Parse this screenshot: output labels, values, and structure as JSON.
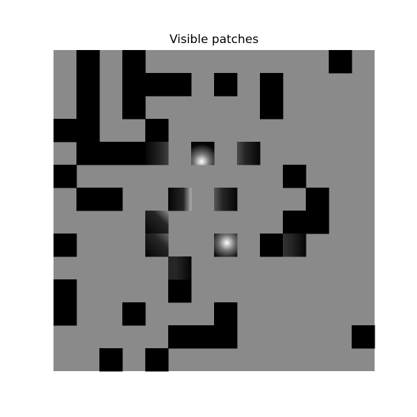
{
  "chart_data": {
    "type": "heatmap",
    "title": "Visible patches",
    "grid": false,
    "axes_visible": false,
    "rows": 14,
    "cols": 14,
    "colormap": "gray",
    "background_value": 0.54,
    "masked_value": 0,
    "masked_cells": [
      [
        0,
        1
      ],
      [
        0,
        3
      ],
      [
        0,
        12
      ],
      [
        1,
        1
      ],
      [
        1,
        3
      ],
      [
        1,
        4
      ],
      [
        1,
        5
      ],
      [
        1,
        7
      ],
      [
        1,
        9
      ],
      [
        2,
        1
      ],
      [
        2,
        3
      ],
      [
        2,
        9
      ],
      [
        3,
        0
      ],
      [
        3,
        1
      ],
      [
        3,
        4
      ],
      [
        4,
        1
      ],
      [
        4,
        2
      ],
      [
        4,
        3
      ],
      [
        5,
        0
      ],
      [
        5,
        10
      ],
      [
        6,
        1
      ],
      [
        6,
        2
      ],
      [
        6,
        11
      ],
      [
        7,
        10
      ],
      [
        7,
        11
      ],
      [
        8,
        0
      ],
      [
        8,
        9
      ],
      [
        9,
        5
      ],
      [
        10,
        0
      ],
      [
        10,
        5
      ],
      [
        11,
        0
      ],
      [
        11,
        3
      ],
      [
        11,
        7
      ],
      [
        12,
        5
      ],
      [
        12,
        6
      ],
      [
        12,
        7
      ],
      [
        12,
        13
      ],
      [
        13,
        2
      ],
      [
        13,
        4
      ]
    ],
    "visible_patches": [
      {
        "row": 4,
        "col": 4,
        "style": "dark-edge-right",
        "peak": 0.25
      },
      {
        "row": 4,
        "col": 6,
        "style": "bright-bottom",
        "peak": 1.0
      },
      {
        "row": 4,
        "col": 8,
        "style": "dark-edge-left",
        "peak": 0.3
      },
      {
        "row": 6,
        "col": 5,
        "style": "dark-edge-right",
        "peak": 0.7
      },
      {
        "row": 6,
        "col": 7,
        "style": "dark-edge-left",
        "peak": 0.35
      },
      {
        "row": 7,
        "col": 4,
        "style": "diagonal-light",
        "peak": 0.55
      },
      {
        "row": 8,
        "col": 4,
        "style": "diagonal-light",
        "peak": 0.4
      },
      {
        "row": 8,
        "col": 7,
        "style": "bright-center",
        "peak": 1.0
      },
      {
        "row": 8,
        "col": 10,
        "style": "dark-fade-left",
        "peak": 0.2
      },
      {
        "row": 9,
        "col": 5,
        "style": "dark-edge-left",
        "peak": 0.15
      }
    ]
  }
}
